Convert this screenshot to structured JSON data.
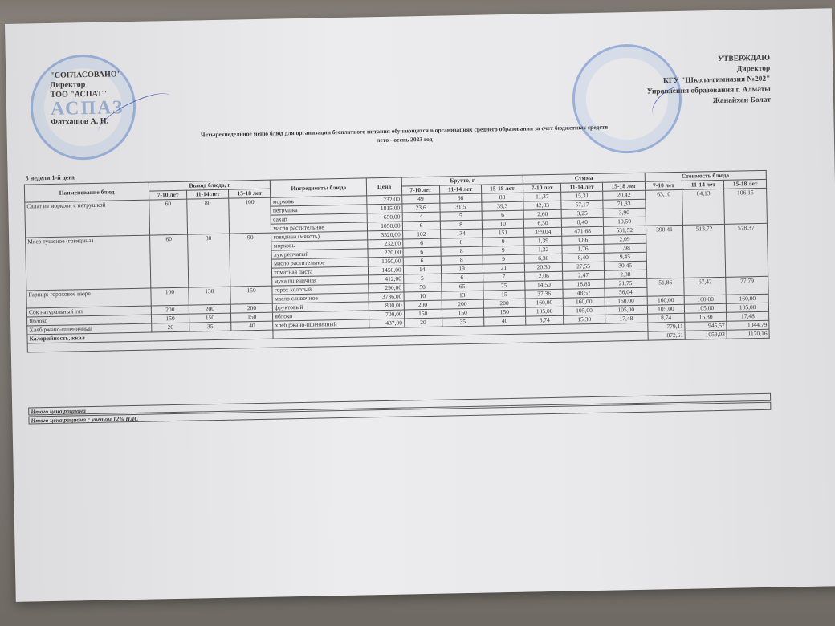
{
  "approval_left": {
    "agreed": "\"СОГЛАСОВАНО\"",
    "position": "Директор",
    "org": "ТОО \"АСПАТ\"",
    "name": "Фатхашов А. Н.",
    "stamp_text": "АСПАЗ"
  },
  "approval_right": {
    "approve": "УТВЕРЖДАЮ",
    "position": "Директор",
    "org": "КГУ  \"Школа-гимназия №202\"",
    "dept": "Управления образования г. Алматы",
    "name": "Жанайхан Болат"
  },
  "title": {
    "line1": "Четырехнедельное меню блюд для организации бесплатного питания обучающихся в организациях среднего образования за счет бюджетных средств",
    "line2": "лето - осень 2023 год"
  },
  "week_day": "3 недели 1-й день",
  "table": {
    "headers": {
      "dish": "Наименование блюд",
      "yield": "Выход блюда, г",
      "ingredients": "Ингредиенты блюда",
      "price": "Цена",
      "brutto": "Брутто, г",
      "sum": "Сумма",
      "cost": "Стоимость блюда",
      "ages": [
        "7-10 лет",
        "11-14 лет",
        "15-18 лет"
      ]
    },
    "dishes": [
      {
        "name": "Салат из моркови с петрушкой",
        "yield": [
          "60",
          "80",
          "100"
        ],
        "cost": [
          "63,10",
          "84,13",
          "106,15"
        ],
        "ingredients": [
          {
            "name": "морковь",
            "price": "232,00",
            "brutto": [
              "49",
              "66",
              "88"
            ],
            "sum": [
              "11,37",
              "15,31",
              "20,42"
            ]
          },
          {
            "name": "петрушка",
            "price": "1815,00",
            "brutto": [
              "23,6",
              "31,5",
              "39,3"
            ],
            "sum": [
              "42,83",
              "57,17",
              "71,33"
            ]
          },
          {
            "name": "сахар",
            "price": "650,00",
            "brutto": [
              "4",
              "5",
              "6"
            ],
            "sum": [
              "2,60",
              "3,25",
              "3,90"
            ]
          },
          {
            "name": "масло растительное",
            "price": "1050,00",
            "brutto": [
              "6",
              "8",
              "10"
            ],
            "sum": [
              "6,30",
              "8,40",
              "10,50"
            ]
          }
        ]
      },
      {
        "name": "Мясо тушеное (говядина)",
        "yield": [
          "60",
          "80",
          "90"
        ],
        "cost": [
          "390,41",
          "513,72",
          "578,37"
        ],
        "ingredients": [
          {
            "name": "говядина (мякоть)",
            "price": "3520,00",
            "brutto": [
              "102",
              "134",
              "151"
            ],
            "sum": [
              "359,04",
              "471,68",
              "531,52"
            ]
          },
          {
            "name": "морковь",
            "price": "232,00",
            "brutto": [
              "6",
              "8",
              "9"
            ],
            "sum": [
              "1,39",
              "1,86",
              "2,09"
            ]
          },
          {
            "name": "лук репчатый",
            "price": "220,00",
            "brutto": [
              "6",
              "8",
              "9"
            ],
            "sum": [
              "1,32",
              "1,76",
              "1,98"
            ]
          },
          {
            "name": "масло растительное",
            "price": "1050,00",
            "brutto": [
              "6",
              "8",
              "9"
            ],
            "sum": [
              "6,30",
              "8,40",
              "9,45"
            ]
          },
          {
            "name": "томатная паста",
            "price": "1450,00",
            "brutto": [
              "14",
              "19",
              "21"
            ],
            "sum": [
              "20,30",
              "27,55",
              "30,45"
            ]
          },
          {
            "name": "мука пшеничная",
            "price": "412,00",
            "brutto": [
              "5",
              "6",
              "7"
            ],
            "sum": [
              "2,06",
              "2,47",
              "2,88"
            ]
          }
        ]
      },
      {
        "name": "Гарнир: гороховое пюре",
        "yield": [
          "100",
          "130",
          "150"
        ],
        "cost": [
          "51,86",
          "67,42",
          "77,79"
        ],
        "ingredients": [
          {
            "name": "горох колотый",
            "price": "290,00",
            "brutto": [
              "50",
              "65",
              "75"
            ],
            "sum": [
              "14,50",
              "18,85",
              "21,75"
            ]
          },
          {
            "name": "масло сливочное",
            "price": "3736,00",
            "brutto": [
              "10",
              "13",
              "15"
            ],
            "sum": [
              "37,36",
              "48,57",
              "56,04"
            ]
          }
        ]
      },
      {
        "name": "Сок натуральный т/п",
        "yield": [
          "200",
          "200",
          "200"
        ],
        "cost": [
          "160,00",
          "160,00",
          "160,00"
        ],
        "ingredients": [
          {
            "name": "фруктовый",
            "price": "800,00",
            "brutto": [
              "200",
              "200",
              "200"
            ],
            "sum": [
              "160,00",
              "160,00",
              "160,00"
            ]
          }
        ]
      },
      {
        "name": "Яблоко",
        "yield": [
          "150",
          "150",
          "150"
        ],
        "cost": [
          "105,00",
          "105,00",
          "105,00"
        ],
        "ingredients": [
          {
            "name": "яблоко",
            "price": "700,00",
            "brutto": [
              "150",
              "150",
              "150"
            ],
            "sum": [
              "105,00",
              "105,00",
              "105,00"
            ]
          }
        ]
      },
      {
        "name": "Хлеб ржано-пшеничный",
        "yield": [
          "20",
          "35",
          "40"
        ],
        "cost": [
          "8,74",
          "15,30",
          "17,48"
        ],
        "ingredients": [
          {
            "name": "хлеб ржано-пшеничный",
            "price": "437,00",
            "brutto": [
              "20",
              "35",
              "40"
            ],
            "sum": [
              "8,74",
              "15,30",
              "17,48"
            ]
          }
        ]
      }
    ],
    "calories_label": "Калорийность, ккал",
    "totals": [
      "779,11",
      "945,57",
      "1044,79"
    ],
    "totals_vat": [
      "872,61",
      "1059,03",
      "1170,16"
    ]
  },
  "total_price_label": "Итого цена рациона",
  "total_price_vat_label": "Итого цена рациона с учетом 12% НДС",
  "colors": {
    "stamp": "#5a82c8",
    "signature": "#283ca0",
    "paper": "#e9e9eb"
  }
}
